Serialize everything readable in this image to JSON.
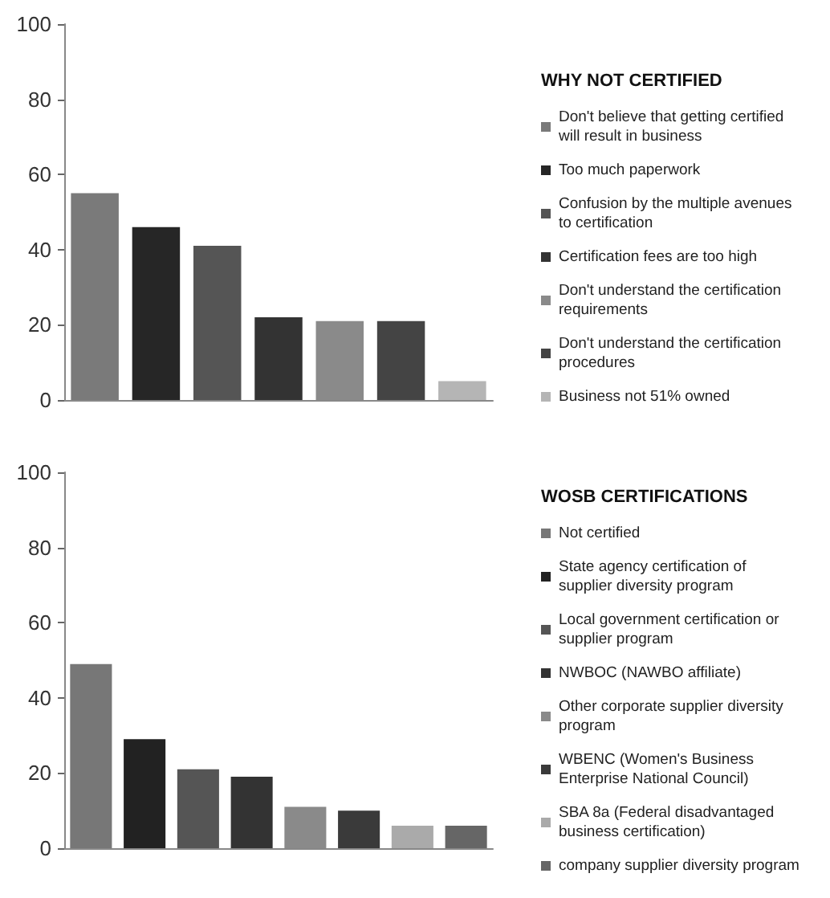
{
  "chart_data": [
    {
      "type": "bar",
      "legend_title": "WHY NOT CERTIFIED",
      "categories": [
        null,
        null,
        null,
        null,
        null,
        null,
        null
      ],
      "series": [
        {
          "name": "Don't believe that getting certified will result in business",
          "color": "#7a7a7a",
          "values": [
            55,
            null,
            null,
            null,
            null,
            null,
            null
          ]
        },
        {
          "name": "Too much paperwork",
          "color": "#262626",
          "values": [
            null,
            46,
            null,
            null,
            null,
            null,
            null
          ]
        },
        {
          "name": "Confusion by the multiple avenues to certification",
          "color": "#555555",
          "values": [
            null,
            null,
            41,
            null,
            null,
            null,
            null
          ]
        },
        {
          "name": "Certification fees are too high",
          "color": "#333333",
          "values": [
            null,
            null,
            null,
            22,
            null,
            null,
            null
          ]
        },
        {
          "name": "Don't understand the certification requirements",
          "color": "#8a8a8a",
          "values": [
            null,
            null,
            null,
            null,
            21,
            null,
            null
          ]
        },
        {
          "name": "Don't understand the certification procedures",
          "color": "#444444",
          "values": [
            null,
            null,
            null,
            null,
            null,
            21,
            null
          ]
        },
        {
          "name": "Business not 51% owned",
          "color": "#b5b5b5",
          "values": [
            null,
            null,
            null,
            null,
            null,
            null,
            5
          ]
        }
      ],
      "ylim": [
        0,
        100
      ],
      "yticks": [
        0,
        20,
        40,
        60,
        80,
        100
      ],
      "tick_labels": "y",
      "grid": false,
      "legend": "right"
    },
    {
      "type": "bar",
      "legend_title": "WOSB CERTIFICATIONS",
      "categories": [
        null,
        null,
        null,
        null,
        null,
        null,
        null,
        null
      ],
      "series": [
        {
          "name": "Not certified",
          "color": "#777777",
          "values": [
            49,
            null,
            null,
            null,
            null,
            null,
            null,
            null
          ]
        },
        {
          "name": "State agency certification of supplier diversity program",
          "color": "#222222",
          "values": [
            null,
            29,
            null,
            null,
            null,
            null,
            null,
            null
          ]
        },
        {
          "name": "Local government certification or supplier program",
          "color": "#555555",
          "values": [
            null,
            null,
            21,
            null,
            null,
            null,
            null,
            null
          ]
        },
        {
          "name": "NWBOC (NAWBO affiliate)",
          "color": "#333333",
          "values": [
            null,
            null,
            null,
            19,
            null,
            null,
            null,
            null
          ]
        },
        {
          "name": "Other corporate supplier diversity program",
          "color": "#8a8a8a",
          "values": [
            null,
            null,
            null,
            null,
            11,
            null,
            null,
            null
          ]
        },
        {
          "name": "WBENC (Women's Business Enterprise National Council)",
          "color": "#3a3a3a",
          "values": [
            null,
            null,
            null,
            null,
            null,
            10,
            null,
            null
          ]
        },
        {
          "name": "SBA 8a (Federal disadvantaged business certification)",
          "color": "#aaaaaa",
          "values": [
            null,
            null,
            null,
            null,
            null,
            null,
            6,
            null
          ]
        },
        {
          "name": "company supplier diversity program",
          "color": "#666666",
          "values": [
            null,
            null,
            null,
            null,
            null,
            null,
            null,
            6
          ]
        }
      ],
      "ylim": [
        0,
        100
      ],
      "yticks": [
        0,
        20,
        40,
        60,
        80,
        100
      ],
      "tick_labels": "y",
      "grid": false,
      "legend": "right"
    }
  ]
}
